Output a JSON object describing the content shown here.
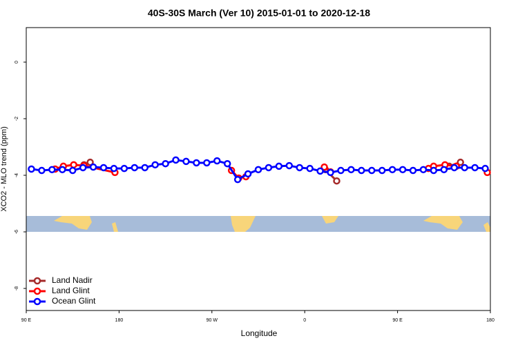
{
  "chart_data": {
    "type": "line",
    "title": "40S-30S March (Ver 10)   2015-01-01 to 2020-12-18",
    "x_label": "Longitude",
    "y_label": "XCO2 - MLO trend (ppm)",
    "xlim": [
      90,
      540
    ],
    "xticks": [
      {
        "value": 90,
        "label": "90 E"
      },
      {
        "value": 180,
        "label": "180"
      },
      {
        "value": 270,
        "label": "90 W"
      },
      {
        "value": 360,
        "label": "0"
      },
      {
        "value": 450,
        "label": "90 E"
      },
      {
        "value": 540,
        "label": "180"
      }
    ],
    "ylim": [
      -8.78,
      1.22
    ],
    "yticks": [
      0,
      -2,
      -4,
      -6,
      -8
    ],
    "legend": "bottom-left",
    "series": [
      {
        "name": "Land Nadir",
        "color": "#a52a2a",
        "x": [
          146,
          152,
          null,
          380,
          391,
          null,
          500,
          511
        ],
        "values": [
          -3.63,
          -3.54,
          null,
          -3.8,
          -4.2,
          null,
          -3.68,
          -3.54
        ]
      },
      {
        "name": "Land Glint",
        "color": "#ff0000",
        "x": [
          118,
          126,
          136,
          146,
          176,
          null,
          289,
          296,
          303,
          null,
          379,
          385,
          null,
          480,
          485,
          496,
          507,
          null,
          537
        ],
        "values": [
          -3.78,
          -3.68,
          -3.63,
          -3.66,
          -3.9,
          null,
          -3.83,
          -4.1,
          -4.05,
          null,
          -3.71,
          -3.88,
          null,
          -3.76,
          -3.68,
          -3.63,
          -3.68,
          null,
          -3.9
        ]
      },
      {
        "name": "Ocean Glint",
        "color": "#0000ff",
        "x": [
          95,
          105,
          115,
          125,
          135,
          145,
          155,
          165,
          175,
          185,
          195,
          205,
          215,
          225,
          235,
          245,
          255,
          265,
          275,
          285,
          295,
          305,
          315,
          325,
          335,
          345,
          355,
          365,
          375,
          385,
          395,
          405,
          415,
          425,
          435,
          445,
          455,
          465,
          475,
          485,
          495,
          505,
          515,
          525,
          535
        ],
        "values": [
          -3.78,
          -3.83,
          -3.8,
          -3.8,
          -3.83,
          -3.73,
          -3.71,
          -3.73,
          -3.76,
          -3.76,
          -3.73,
          -3.73,
          -3.63,
          -3.59,
          -3.46,
          -3.51,
          -3.56,
          -3.56,
          -3.49,
          -3.59,
          -4.15,
          -3.95,
          -3.8,
          -3.73,
          -3.68,
          -3.66,
          -3.73,
          -3.76,
          -3.85,
          -3.9,
          -3.83,
          -3.8,
          -3.83,
          -3.83,
          -3.83,
          -3.8,
          -3.8,
          -3.83,
          -3.8,
          -3.83,
          -3.8,
          -3.73,
          -3.73,
          -3.73,
          -3.76
        ]
      }
    ]
  }
}
